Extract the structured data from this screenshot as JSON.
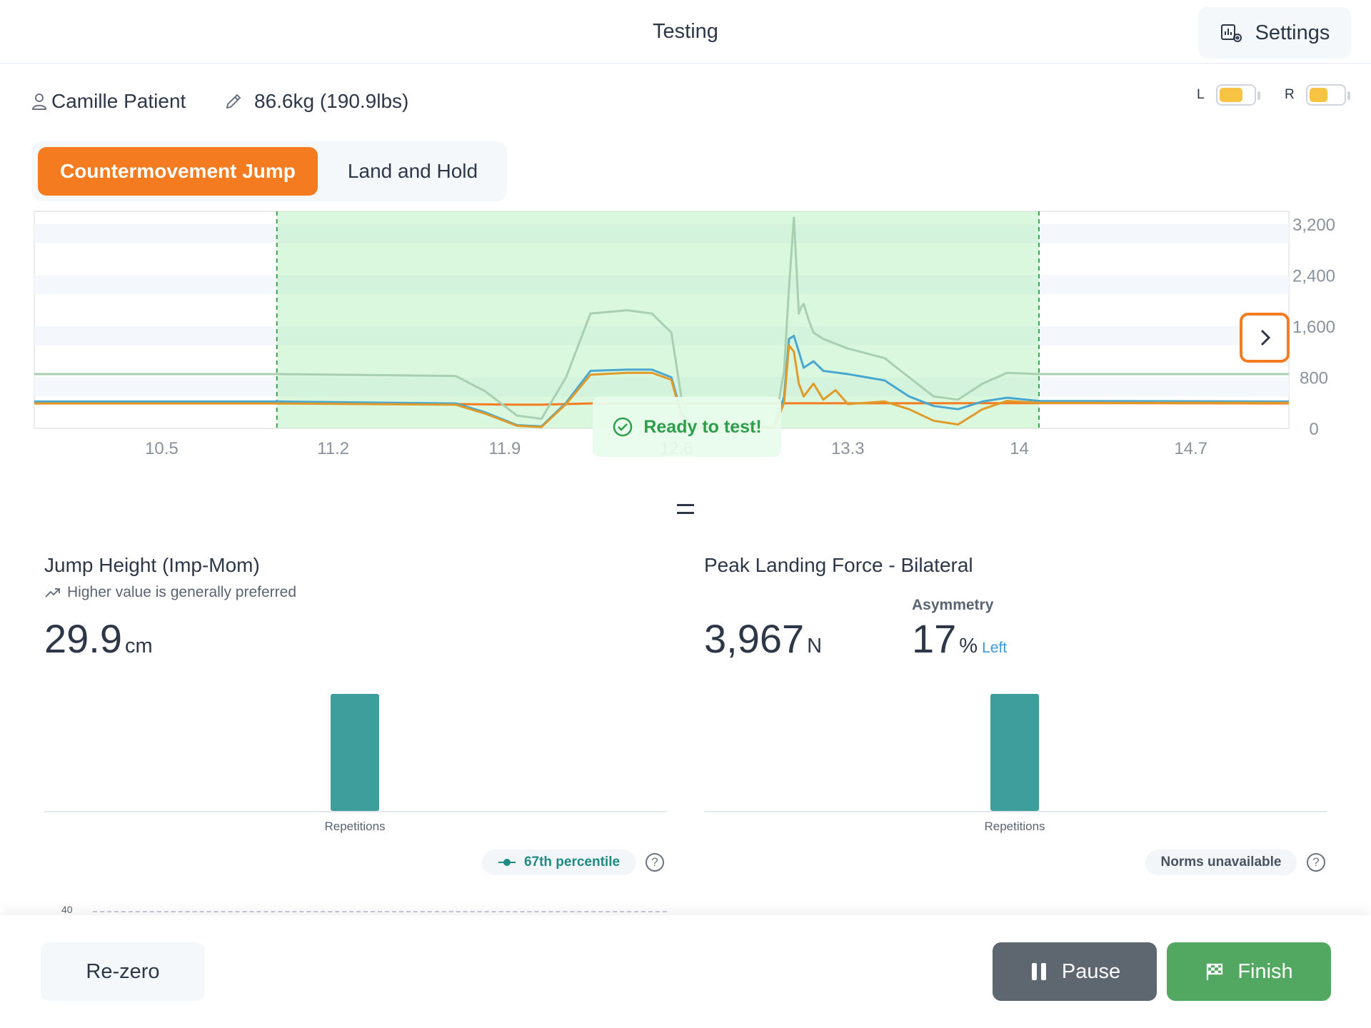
{
  "header": {
    "title": "Testing",
    "settings_label": "Settings",
    "settings_icon": "settings-chart-icon"
  },
  "patient": {
    "name": "Camille Patient",
    "weight": "86.6kg (190.9lbs)"
  },
  "batteries": [
    {
      "label": "L",
      "level": 0.7
    },
    {
      "label": "R",
      "level": 0.55
    }
  ],
  "tabs": [
    {
      "label": "Countermovement Jump",
      "active": true
    },
    {
      "label": "Land and Hold",
      "active": false
    }
  ],
  "ready_text": "Ready to test!",
  "chart_data": {
    "type": "line",
    "x_ticks": [
      "10.5",
      "11.2",
      "11.9",
      "12.6",
      "13.3",
      "14",
      "14.7"
    ],
    "y_ticks": [
      "0",
      "800",
      "1,600",
      "2,400",
      "3,200"
    ],
    "ylim": [
      0,
      3400
    ],
    "xlim": [
      9.98,
      15.1
    ],
    "window": [
      10.97,
      14.08
    ],
    "grid": true,
    "series": [
      {
        "color": "#a8cfb0",
        "x": [
          9.98,
          10.97,
          11.7,
          11.82,
          11.95,
          12.05,
          12.15,
          12.25,
          12.4,
          12.5,
          12.58,
          12.62,
          12.66,
          12.7,
          13.0,
          13.04,
          13.06,
          13.08,
          13.1,
          13.11,
          13.12,
          13.14,
          13.16,
          13.2,
          13.3,
          13.45,
          13.55,
          13.65,
          13.75,
          13.85,
          13.95,
          14.08,
          15.1
        ],
        "y": [
          850,
          850,
          820,
          580,
          200,
          150,
          800,
          1800,
          1850,
          1800,
          1500,
          500,
          20,
          20,
          20,
          900,
          2200,
          3300,
          1800,
          1900,
          1950,
          1700,
          1500,
          1400,
          1250,
          1100,
          800,
          500,
          450,
          700,
          870,
          850,
          850
        ]
      },
      {
        "color": "#4aa8d0",
        "x": [
          9.98,
          10.97,
          11.7,
          11.82,
          11.95,
          12.05,
          12.15,
          12.25,
          12.4,
          12.5,
          12.58,
          12.62,
          12.66,
          12.7,
          13.0,
          13.04,
          13.06,
          13.08,
          13.1,
          13.12,
          13.16,
          13.2,
          13.3,
          13.45,
          13.55,
          13.65,
          13.75,
          13.85,
          13.95,
          14.08,
          15.1
        ],
        "y": [
          420,
          420,
          390,
          250,
          50,
          30,
          400,
          900,
          920,
          920,
          800,
          250,
          20,
          20,
          20,
          500,
          1400,
          1450,
          1200,
          950,
          1050,
          900,
          850,
          750,
          500,
          350,
          300,
          420,
          480,
          430,
          420
        ]
      },
      {
        "color": "#e09a2a",
        "x": [
          9.98,
          10.97,
          11.7,
          11.82,
          11.95,
          12.05,
          12.15,
          12.25,
          12.4,
          12.5,
          12.58,
          12.62,
          12.66,
          12.7,
          13.0,
          13.04,
          13.06,
          13.08,
          13.1,
          13.12,
          13.16,
          13.2,
          13.25,
          13.3,
          13.45,
          13.55,
          13.65,
          13.75,
          13.85,
          13.95,
          14.08,
          15.1
        ],
        "y": [
          390,
          390,
          370,
          230,
          40,
          20,
          380,
          840,
          870,
          870,
          760,
          200,
          10,
          10,
          10,
          400,
          1300,
          1200,
          700,
          500,
          700,
          450,
          600,
          380,
          420,
          300,
          120,
          60,
          300,
          430,
          400,
          400
        ]
      },
      {
        "color": "#f47b20",
        "x": [
          9.98,
          10.97,
          11.7,
          11.95,
          12.05,
          12.15,
          12.25,
          14.08,
          15.1
        ],
        "y": [
          390,
          390,
          380,
          370,
          370,
          380,
          390,
          395,
          390
        ]
      }
    ]
  },
  "panels": [
    {
      "title": "Jump Height (Imp-Mom)",
      "preference": "Higher value is generally preferred",
      "value": "29.9",
      "unit": "cm",
      "x_caption": "Repetitions",
      "percentile_label": "67th percentile",
      "help": "?",
      "y_label": "40",
      "bar_value": 1
    },
    {
      "title": "Peak Landing Force - Bilateral",
      "value": "3,967",
      "unit": "N",
      "asym_label": "Asymmetry",
      "asym_value": "17",
      "asym_unit": "%",
      "asym_side": "Left",
      "x_caption": "Repetitions",
      "norms_label": "Norms unavailable",
      "help": "?",
      "bar_value": 1
    }
  ],
  "footer": {
    "rezero": "Re-zero",
    "pause": "Pause",
    "finish": "Finish"
  },
  "colors": {
    "accent": "#f47b20",
    "success": "#52a860",
    "teal": "#3d9e9b",
    "pause": "#5e6670"
  }
}
